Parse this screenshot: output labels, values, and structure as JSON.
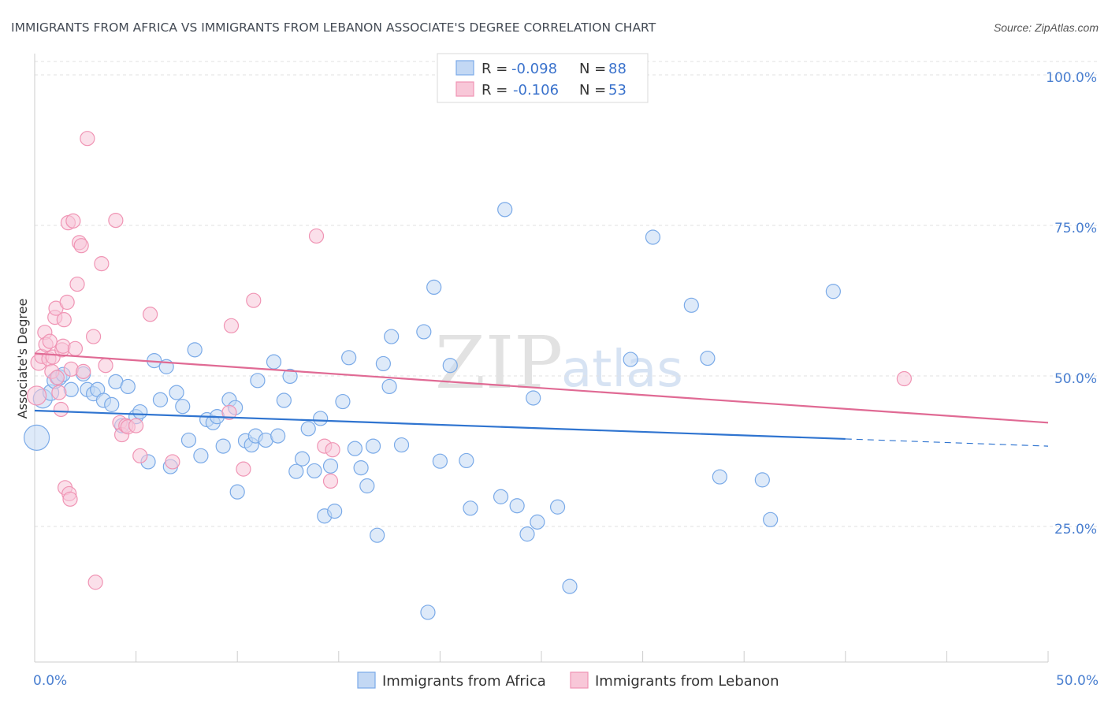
{
  "chart_data": {
    "type": "scatter",
    "title": "IMMIGRANTS FROM AFRICA VS IMMIGRANTS FROM LEBANON ASSOCIATE'S DEGREE CORRELATION CHART",
    "source": "Source: ZipAtlas.com",
    "ylabel": "Associate's Degree",
    "xlim": [
      0,
      50
    ],
    "ylim": [
      0,
      105
    ],
    "x_tick_labels": [
      "0.0%",
      "50.0%"
    ],
    "y_tick_labels": [
      "100.0%",
      "75.0%",
      "50.0%",
      "25.0%"
    ],
    "y_tick_values": [
      100,
      75,
      50,
      25
    ],
    "grid": true,
    "legend": {
      "placement": "top-center",
      "r_label": "R =",
      "n_label": "N =",
      "entries": [
        {
          "r": "-0.098",
          "n": "88"
        },
        {
          "r": "-0.106",
          "n": "53"
        }
      ]
    },
    "watermark": {
      "zip": "ZIP",
      "atlas": "atlas"
    },
    "series": [
      {
        "name": "Immigrants from Africa",
        "color": "#7aaae8",
        "fill": "#c3d8f4",
        "line_color": "#2f74d0",
        "trend": {
          "x0": 0,
          "y0": 44.5,
          "x1": 40,
          "y1": 39.8,
          "dash_to_x": 50,
          "dash_to_y": 38.6
        },
        "points": [
          [
            0.1,
            40.0,
            16
          ],
          [
            0.4,
            46.5,
            12
          ],
          [
            0.8,
            47.5,
            10
          ],
          [
            1.0,
            49.5,
            10
          ],
          [
            1.2,
            50.0,
            10
          ],
          [
            1.4,
            50.5,
            9
          ],
          [
            1.8,
            48.0,
            9
          ],
          [
            2.4,
            50.6,
            9
          ],
          [
            2.6,
            48.0,
            9
          ],
          [
            2.9,
            47.3,
            9
          ],
          [
            3.1,
            48.0,
            9
          ],
          [
            3.4,
            46.2,
            9
          ],
          [
            3.8,
            45.5,
            9
          ],
          [
            4.0,
            49.3,
            9
          ],
          [
            4.3,
            42.0,
            9
          ],
          [
            4.6,
            48.5,
            9
          ],
          [
            5.0,
            43.5,
            9
          ],
          [
            5.2,
            44.3,
            9
          ],
          [
            5.6,
            36.0,
            9
          ],
          [
            5.9,
            52.8,
            9
          ],
          [
            6.2,
            46.3,
            9
          ],
          [
            6.5,
            51.8,
            9
          ],
          [
            6.7,
            35.2,
            9
          ],
          [
            7.0,
            47.5,
            9
          ],
          [
            7.3,
            45.2,
            9
          ],
          [
            7.6,
            39.6,
            9
          ],
          [
            7.9,
            54.6,
            9
          ],
          [
            8.2,
            37.0,
            9
          ],
          [
            8.5,
            43.0,
            9
          ],
          [
            8.8,
            42.5,
            9
          ],
          [
            9.0,
            43.5,
            9
          ],
          [
            9.3,
            38.6,
            9
          ],
          [
            9.6,
            46.3,
            9
          ],
          [
            9.9,
            45.0,
            9
          ],
          [
            10.0,
            31.0,
            9
          ],
          [
            10.4,
            39.5,
            9
          ],
          [
            10.7,
            38.8,
            9
          ],
          [
            10.9,
            40.3,
            9
          ],
          [
            11.0,
            49.5,
            9
          ],
          [
            11.4,
            39.6,
            9
          ],
          [
            11.8,
            52.6,
            9
          ],
          [
            12.0,
            40.3,
            9
          ],
          [
            12.3,
            46.2,
            9
          ],
          [
            12.6,
            50.2,
            9
          ],
          [
            12.9,
            34.4,
            9
          ],
          [
            13.2,
            36.5,
            9
          ],
          [
            13.5,
            41.5,
            9
          ],
          [
            13.8,
            34.5,
            9
          ],
          [
            14.1,
            43.2,
            9
          ],
          [
            14.3,
            27.0,
            9
          ],
          [
            14.6,
            35.3,
            9
          ],
          [
            14.8,
            27.8,
            9
          ],
          [
            15.2,
            46.0,
            9
          ],
          [
            15.5,
            53.3,
            9
          ],
          [
            15.8,
            38.2,
            9
          ],
          [
            16.1,
            35.0,
            9
          ],
          [
            16.4,
            32.0,
            9
          ],
          [
            16.7,
            38.6,
            9
          ],
          [
            16.9,
            23.8,
            9
          ],
          [
            17.2,
            52.3,
            9
          ],
          [
            17.5,
            48.5,
            9
          ],
          [
            17.6,
            56.8,
            9
          ],
          [
            18.1,
            38.8,
            9
          ],
          [
            19.2,
            57.6,
            9
          ],
          [
            19.4,
            11.0,
            9
          ],
          [
            19.7,
            65.0,
            9
          ],
          [
            20.0,
            36.1,
            9
          ],
          [
            20.5,
            52.0,
            9
          ],
          [
            21.3,
            36.2,
            9
          ],
          [
            21.5,
            28.3,
            9
          ],
          [
            23.0,
            30.2,
            9
          ],
          [
            23.2,
            77.9,
            9
          ],
          [
            23.8,
            28.7,
            9
          ],
          [
            24.3,
            24.0,
            9
          ],
          [
            24.6,
            46.6,
            9
          ],
          [
            24.8,
            26.0,
            9
          ],
          [
            25.8,
            28.5,
            9
          ],
          [
            26.4,
            15.3,
            9
          ],
          [
            29.4,
            53.0,
            9
          ],
          [
            30.5,
            73.3,
            9
          ],
          [
            32.4,
            62.0,
            9
          ],
          [
            33.2,
            53.2,
            9
          ],
          [
            33.8,
            33.5,
            9
          ],
          [
            35.9,
            33.0,
            9
          ],
          [
            36.3,
            26.4,
            9
          ],
          [
            39.4,
            64.3,
            9
          ]
        ]
      },
      {
        "name": "Immigrants from Lebanon",
        "color": "#f094b4",
        "fill": "#f8c7d8",
        "line_color": "#e06a94",
        "trend": {
          "x0": 0,
          "y0": 54.0,
          "x1": 50,
          "y1": 42.5
        },
        "points": [
          [
            0.1,
            47.0,
            12
          ],
          [
            0.2,
            52.5,
            10
          ],
          [
            0.35,
            53.5,
            9
          ],
          [
            0.5,
            57.5,
            9
          ],
          [
            0.55,
            55.5,
            9
          ],
          [
            0.7,
            53.1,
            9
          ],
          [
            0.75,
            56.0,
            9
          ],
          [
            0.85,
            51.0,
            9
          ],
          [
            0.9,
            53.4,
            9
          ],
          [
            1.0,
            60.0,
            9
          ],
          [
            1.05,
            61.5,
            9
          ],
          [
            1.1,
            50.0,
            9
          ],
          [
            1.2,
            47.5,
            9
          ],
          [
            1.3,
            44.7,
            9
          ],
          [
            1.35,
            54.6,
            9
          ],
          [
            1.4,
            55.2,
            9
          ],
          [
            1.45,
            59.6,
            9
          ],
          [
            1.5,
            31.7,
            9
          ],
          [
            1.6,
            62.5,
            9
          ],
          [
            1.65,
            75.7,
            9
          ],
          [
            1.7,
            30.7,
            9
          ],
          [
            1.75,
            29.8,
            9
          ],
          [
            1.8,
            51.4,
            9
          ],
          [
            1.9,
            76.0,
            9
          ],
          [
            2.0,
            54.8,
            9
          ],
          [
            2.1,
            65.5,
            9
          ],
          [
            2.2,
            72.4,
            9
          ],
          [
            2.3,
            71.9,
            9
          ],
          [
            2.4,
            51.0,
            9
          ],
          [
            2.6,
            89.7,
            9
          ],
          [
            3.0,
            16.0,
            9
          ],
          [
            2.9,
            56.8,
            9
          ],
          [
            3.3,
            68.9,
            9
          ],
          [
            3.5,
            52.0,
            9
          ],
          [
            4.0,
            76.1,
            9
          ],
          [
            4.2,
            42.5,
            9
          ],
          [
            4.3,
            40.5,
            9
          ],
          [
            4.5,
            42.0,
            9
          ],
          [
            4.6,
            41.8,
            9
          ],
          [
            5.0,
            42.0,
            9
          ],
          [
            5.2,
            37.0,
            9
          ],
          [
            5.7,
            60.5,
            9
          ],
          [
            6.8,
            36.0,
            9
          ],
          [
            9.6,
            44.2,
            9
          ],
          [
            9.7,
            58.6,
            9
          ],
          [
            10.3,
            34.8,
            9
          ],
          [
            10.8,
            62.8,
            9
          ],
          [
            13.9,
            73.5,
            9
          ],
          [
            14.3,
            38.6,
            9
          ],
          [
            14.6,
            32.8,
            9
          ],
          [
            14.7,
            38.0,
            9
          ],
          [
            42.9,
            49.8,
            9
          ]
        ]
      }
    ]
  }
}
